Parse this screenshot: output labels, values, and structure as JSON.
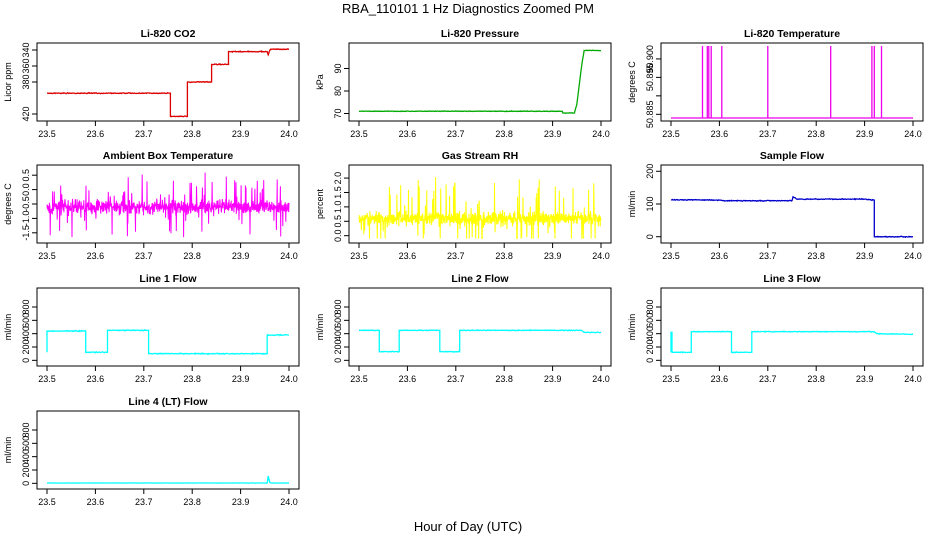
{
  "figure": {
    "title": "RBA_110101  1 Hz Diagnostics Zoomed PM",
    "xlabel": "Hour of Day (UTC)"
  },
  "chart_data": [
    {
      "type": "line",
      "title": "Li-820 CO2",
      "ylabel": "Licor ppm",
      "color": "#dd0000",
      "xlim": [
        23.5,
        24.0
      ],
      "ylim": [
        335,
        425
      ],
      "y_reversed": true,
      "xticks": [
        "23.5",
        "23.6",
        "23.7",
        "23.8",
        "23.9",
        "24.0"
      ],
      "yticks": [
        420,
        380,
        360,
        340
      ],
      "ytick_labels": [
        "420",
        "380",
        "360",
        "340"
      ],
      "noise": 0.8,
      "series": [
        {
          "x": [
            23.5,
            23.755,
            23.755,
            23.79,
            23.79,
            23.84,
            23.84,
            23.875,
            23.875,
            23.955,
            23.957,
            23.96,
            23.962,
            24.0
          ],
          "y": [
            394,
            394,
            423,
            423,
            380,
            380,
            358,
            358,
            342,
            342,
            346,
            341,
            339,
            339
          ]
        }
      ]
    },
    {
      "type": "line",
      "title": "Li-820 Pressure",
      "ylabel": "kPa",
      "color": "#00aa00",
      "xlim": [
        23.5,
        24.0
      ],
      "ylim": [
        68,
        100
      ],
      "xticks": [
        "23.5",
        "23.6",
        "23.7",
        "23.8",
        "23.9",
        "24.0"
      ],
      "yticks": [
        70,
        80,
        90
      ],
      "ytick_labels": [
        "70",
        "80",
        "90"
      ],
      "noise": 0.2,
      "series": [
        {
          "x": [
            23.5,
            23.92,
            23.921,
            23.945,
            23.95,
            23.96,
            23.965,
            24.0
          ],
          "y": [
            71,
            71,
            70.2,
            70.2,
            74,
            91,
            98,
            98
          ]
        }
      ]
    },
    {
      "type": "line",
      "title": "Li-820 Temperature",
      "ylabel": "degrees C",
      "color": "#ee00ee",
      "xlim": [
        23.5,
        24.0
      ],
      "ylim": [
        50.884,
        50.9035
      ],
      "xticks": [
        "23.5",
        "23.6",
        "23.7",
        "23.8",
        "23.9",
        "24.0"
      ],
      "yticks": [
        50.885,
        50.89,
        50.895,
        50.9
      ],
      "ytick_labels": [
        "50.885",
        "",
        "50.895",
        "50.900"
      ],
      "noise": 0,
      "series": [
        {
          "x": [
            23.5,
            23.565,
            23.565,
            23.565,
            23.575,
            23.575,
            23.575,
            23.578,
            23.578,
            23.578,
            23.583,
            23.583,
            23.583,
            23.605,
            23.605,
            23.605,
            23.7,
            23.7,
            23.7,
            23.83,
            23.83,
            23.83,
            23.915,
            23.915,
            23.915,
            23.92,
            23.92,
            23.92,
            23.935,
            23.935,
            23.935,
            24.0
          ],
          "y": [
            50.884,
            50.884,
            50.9035,
            50.884,
            50.884,
            50.9035,
            50.884,
            50.884,
            50.9035,
            50.884,
            50.884,
            50.9035,
            50.884,
            50.884,
            50.9035,
            50.884,
            50.884,
            50.9035,
            50.884,
            50.884,
            50.9035,
            50.884,
            50.884,
            50.9035,
            50.884,
            50.884,
            50.9035,
            50.884,
            50.884,
            50.9035,
            50.884,
            50.884
          ]
        }
      ]
    },
    {
      "type": "line",
      "title": "Ambient Box Temperature",
      "ylabel": "degrees C",
      "color": "#ff00ff",
      "xlim": [
        23.5,
        24.0
      ],
      "ylim": [
        -1.75,
        0.75
      ],
      "xticks": [
        "23.5",
        "23.6",
        "23.7",
        "23.8",
        "23.9",
        "24.0"
      ],
      "yticks": [
        0.5,
        0.0,
        -0.5,
        -1.0,
        -1.5
      ],
      "ytick_labels": [
        "0.5",
        "0.0",
        "-0.5",
        "-1.0",
        "-1.5"
      ],
      "noise_band": {
        "mean": -0.6,
        "core": 0.35,
        "spike": 1.1,
        "min": -1.65,
        "max": 0.7
      },
      "series": [
        {
          "x": [
            23.5,
            24.0
          ],
          "y": [
            -0.6,
            -0.6
          ]
        }
      ]
    },
    {
      "type": "line",
      "title": "Gas Stream RH",
      "ylabel": "percent",
      "color": "#ffff00",
      "xlim": [
        23.5,
        24.0
      ],
      "ylim": [
        -0.15,
        2.35
      ],
      "xticks": [
        "23.5",
        "23.6",
        "23.7",
        "23.8",
        "23.9",
        "24.0"
      ],
      "yticks": [
        0.0,
        0.5,
        1.0,
        1.5,
        2.0
      ],
      "ytick_labels": [
        "0.0",
        "0.5",
        "1.0",
        "1.5",
        "2.0"
      ],
      "noise_band": {
        "mean": 0.6,
        "core": 0.35,
        "spike": 1.4,
        "min": -0.1,
        "max": 2.2
      },
      "series": [
        {
          "x": [
            23.5,
            24.0
          ],
          "y": [
            0.6,
            0.6
          ]
        }
      ]
    },
    {
      "type": "line",
      "title": "Sample Flow",
      "ylabel": "ml/min",
      "color": "#0000cc",
      "xlim": [
        23.5,
        24.0
      ],
      "ylim": [
        -10,
        210
      ],
      "xticks": [
        "23.5",
        "23.6",
        "23.7",
        "23.8",
        "23.9",
        "24.0"
      ],
      "yticks": [
        0,
        100,
        200
      ],
      "ytick_labels": [
        "0",
        "100",
        "200"
      ],
      "noise": 2,
      "series": [
        {
          "x": [
            23.5,
            23.6,
            23.61,
            23.75,
            23.752,
            23.76,
            23.9,
            23.92,
            23.92,
            24.0
          ],
          "y": [
            113,
            112,
            110,
            110,
            122,
            115,
            115,
            112,
            0,
            0
          ]
        }
      ]
    },
    {
      "type": "line",
      "title": "Line 1 Flow",
      "ylabel": "ml/min",
      "color": "#00ffff",
      "xlim": [
        23.5,
        24.0
      ],
      "ylim": [
        -40,
        1040
      ],
      "xticks": [
        "23.5",
        "23.6",
        "23.7",
        "23.8",
        "23.9",
        "24.0"
      ],
      "yticks": [
        0,
        200,
        400,
        600,
        800
      ],
      "ytick_labels": [
        "0",
        "200",
        "400",
        "600",
        "800"
      ],
      "noise": 10,
      "series": [
        {
          "x": [
            23.5,
            23.5,
            23.58,
            23.58,
            23.625,
            23.625,
            23.71,
            23.71,
            23.955,
            23.955,
            24.0
          ],
          "y": [
            120,
            440,
            440,
            120,
            120,
            450,
            450,
            100,
            100,
            380,
            380
          ]
        }
      ]
    },
    {
      "type": "line",
      "title": "Line 2 Flow",
      "ylabel": "ml/min",
      "color": "#00ffff",
      "xlim": [
        23.5,
        24.0
      ],
      "ylim": [
        -40,
        1040
      ],
      "xticks": [
        "23.5",
        "23.6",
        "23.7",
        "23.8",
        "23.9",
        "24.0"
      ],
      "yticks": [
        0,
        200,
        400,
        600,
        800
      ],
      "ytick_labels": [
        "0",
        "200",
        "400",
        "600",
        "800"
      ],
      "noise": 8,
      "series": [
        {
          "x": [
            23.5,
            23.542,
            23.542,
            23.583,
            23.583,
            23.667,
            23.667,
            23.708,
            23.708,
            23.96,
            23.965,
            24.0
          ],
          "y": [
            450,
            450,
            130,
            130,
            450,
            450,
            130,
            130,
            450,
            450,
            420,
            420
          ]
        }
      ]
    },
    {
      "type": "line",
      "title": "Line 3 Flow",
      "ylabel": "ml/min",
      "color": "#00ffff",
      "xlim": [
        23.5,
        24.0
      ],
      "ylim": [
        -40,
        1040
      ],
      "xticks": [
        "23.5",
        "23.6",
        "23.7",
        "23.8",
        "23.9",
        "24.0"
      ],
      "yticks": [
        0,
        200,
        400,
        600,
        800
      ],
      "ytick_labels": [
        "0",
        "200",
        "400",
        "600",
        "800"
      ],
      "noise": 8,
      "series": [
        {
          "x": [
            23.5,
            23.5,
            23.502,
            23.502,
            23.542,
            23.542,
            23.625,
            23.625,
            23.667,
            23.667,
            23.92,
            23.925,
            24.0
          ],
          "y": [
            120,
            420,
            420,
            120,
            120,
            430,
            430,
            120,
            120,
            430,
            430,
            400,
            390
          ]
        }
      ]
    },
    {
      "type": "line",
      "title": "Line 4 (LT) Flow",
      "ylabel": "ml/min",
      "color": "#00ffff",
      "xlim": [
        23.5,
        24.0
      ],
      "ylim": [
        -40,
        1040
      ],
      "xticks": [
        "23.5",
        "23.6",
        "23.7",
        "23.8",
        "23.9",
        "24.0"
      ],
      "yticks": [
        0,
        200,
        400,
        600,
        800
      ],
      "ytick_labels": [
        "0",
        "200",
        "400",
        "600",
        "800"
      ],
      "noise": 3,
      "series": [
        {
          "x": [
            23.5,
            23.955,
            23.957,
            23.96,
            23.962,
            24.0
          ],
          "y": [
            5,
            5,
            110,
            20,
            5,
            5
          ]
        }
      ]
    }
  ]
}
